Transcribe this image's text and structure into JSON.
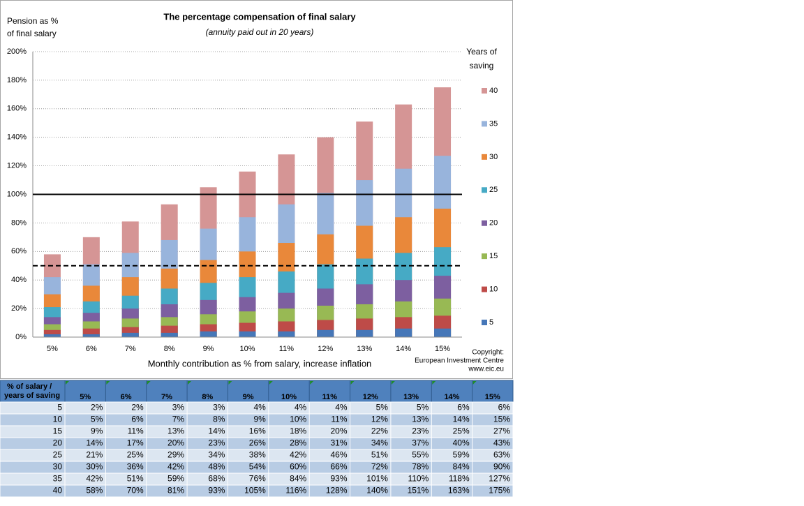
{
  "chart_data": {
    "type": "bar",
    "title": "The percentage compensation of final salary",
    "subtitle": "(annuity paid out in 20 years)",
    "y_label": [
      "Pension as  %",
      "of final salary"
    ],
    "x_label": "Monthly contribution as % from salary, increase inflation",
    "legend_title": [
      "Years of",
      "saving"
    ],
    "copyright": [
      "Copyright:",
      "European Investment Centre",
      "www.eic.eu"
    ],
    "categories": [
      "5%",
      "6%",
      "7%",
      "8%",
      "9%",
      "10%",
      "11%",
      "12%",
      "13%",
      "14%",
      "15%"
    ],
    "ylim": [
      0,
      200
    ],
    "yticks": [
      {
        "value": 0,
        "label": "0%"
      },
      {
        "value": 20,
        "label": "20%"
      },
      {
        "value": 40,
        "label": "40%"
      },
      {
        "value": 60,
        "label": "60%"
      },
      {
        "value": 80,
        "label": "80%"
      },
      {
        "value": 100,
        "label": "100%"
      },
      {
        "value": 120,
        "label": "120%"
      },
      {
        "value": 140,
        "label": "140%"
      },
      {
        "value": 160,
        "label": "160%"
      },
      {
        "value": 180,
        "label": "180%"
      },
      {
        "value": 200,
        "label": "200%"
      }
    ],
    "grid": true,
    "legend": "right",
    "reference_lines": [
      {
        "value": 100,
        "style": "solid"
      },
      {
        "value": 50,
        "style": "dashed"
      }
    ],
    "series": [
      {
        "name": "5",
        "color": "#4677b8",
        "values": [
          2,
          2,
          3,
          3,
          4,
          4,
          4,
          5,
          5,
          6,
          6
        ],
        "value_labels": [
          "2%",
          "2%",
          "3%",
          "3%",
          "4%",
          "4%",
          "4%",
          "5%",
          "5%",
          "6%",
          "6%"
        ]
      },
      {
        "name": "10",
        "color": "#be4b48",
        "values": [
          5,
          6,
          7,
          8,
          9,
          10,
          11,
          12,
          13,
          14,
          15
        ],
        "value_labels": [
          "5%",
          "6%",
          "7%",
          "8%",
          "9%",
          "10%",
          "11%",
          "12%",
          "13%",
          "14%",
          "15%"
        ]
      },
      {
        "name": "15",
        "color": "#98b954",
        "values": [
          9,
          11,
          13,
          14,
          16,
          18,
          20,
          22,
          23,
          25,
          27
        ],
        "value_labels": [
          "9%",
          "11%",
          "13%",
          "14%",
          "16%",
          "18%",
          "20%",
          "22%",
          "23%",
          "25%",
          "27%"
        ]
      },
      {
        "name": "20",
        "color": "#7d5fa0",
        "values": [
          14,
          17,
          20,
          23,
          26,
          28,
          31,
          34,
          37,
          40,
          43
        ],
        "value_labels": [
          "14%",
          "17%",
          "20%",
          "23%",
          "26%",
          "28%",
          "31%",
          "34%",
          "37%",
          "40%",
          "43%"
        ]
      },
      {
        "name": "25",
        "color": "#46aac5",
        "values": [
          21,
          25,
          29,
          34,
          38,
          42,
          46,
          51,
          55,
          59,
          63
        ],
        "value_labels": [
          "21%",
          "25%",
          "29%",
          "34%",
          "38%",
          "42%",
          "46%",
          "51%",
          "55%",
          "59%",
          "63%"
        ]
      },
      {
        "name": "30",
        "color": "#e9883a",
        "values": [
          30,
          36,
          42,
          48,
          54,
          60,
          66,
          72,
          78,
          84,
          90
        ],
        "value_labels": [
          "30%",
          "36%",
          "42%",
          "48%",
          "54%",
          "60%",
          "66%",
          "72%",
          "78%",
          "84%",
          "90%"
        ]
      },
      {
        "name": "35",
        "color": "#98b4dc",
        "values": [
          42,
          51,
          59,
          68,
          76,
          84,
          93,
          101,
          110,
          118,
          127
        ],
        "value_labels": [
          "42%",
          "51%",
          "59%",
          "68%",
          "76%",
          "84%",
          "93%",
          "101%",
          "110%",
          "118%",
          "127%"
        ]
      },
      {
        "name": "40",
        "color": "#d59595",
        "values": [
          58,
          70,
          81,
          93,
          105,
          116,
          128,
          140,
          151,
          163,
          175
        ],
        "value_labels": [
          "58%",
          "70%",
          "81%",
          "93%",
          "105%",
          "116%",
          "128%",
          "140%",
          "151%",
          "163%",
          "175%"
        ]
      }
    ]
  },
  "table": {
    "corner": [
      "% of salary  /",
      "years of saving"
    ]
  }
}
